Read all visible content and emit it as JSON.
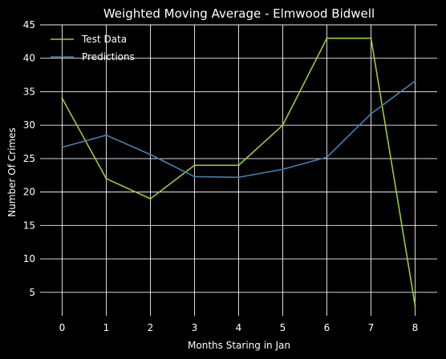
{
  "chart_data": {
    "type": "line",
    "title": "Weighted Moving Average - Elmwood Bidwell",
    "xlabel": "Months Staring in Jan",
    "ylabel": "Number Of Crimes",
    "x": [
      0,
      1,
      2,
      3,
      4,
      5,
      6,
      7,
      8
    ],
    "xlim": [
      -0.5,
      8.5
    ],
    "ylim": [
      1.5,
      45
    ],
    "xticks": [
      0,
      1,
      2,
      3,
      4,
      5,
      6,
      7,
      8
    ],
    "yticks": [
      5,
      10,
      15,
      20,
      25,
      30,
      35,
      40,
      45
    ],
    "grid": true,
    "background": "#000000",
    "legend_position": "top-left",
    "series": [
      {
        "name": "Test Data",
        "color": "#9acd32",
        "values": [
          34,
          22,
          19,
          24,
          24,
          30,
          43,
          43,
          3
        ]
      },
      {
        "name": "Predictions",
        "color": "#4682b4",
        "values": [
          26.7,
          28.5,
          25.6,
          22.3,
          22.2,
          23.4,
          25.2,
          31.7,
          36.6
        ]
      }
    ]
  }
}
